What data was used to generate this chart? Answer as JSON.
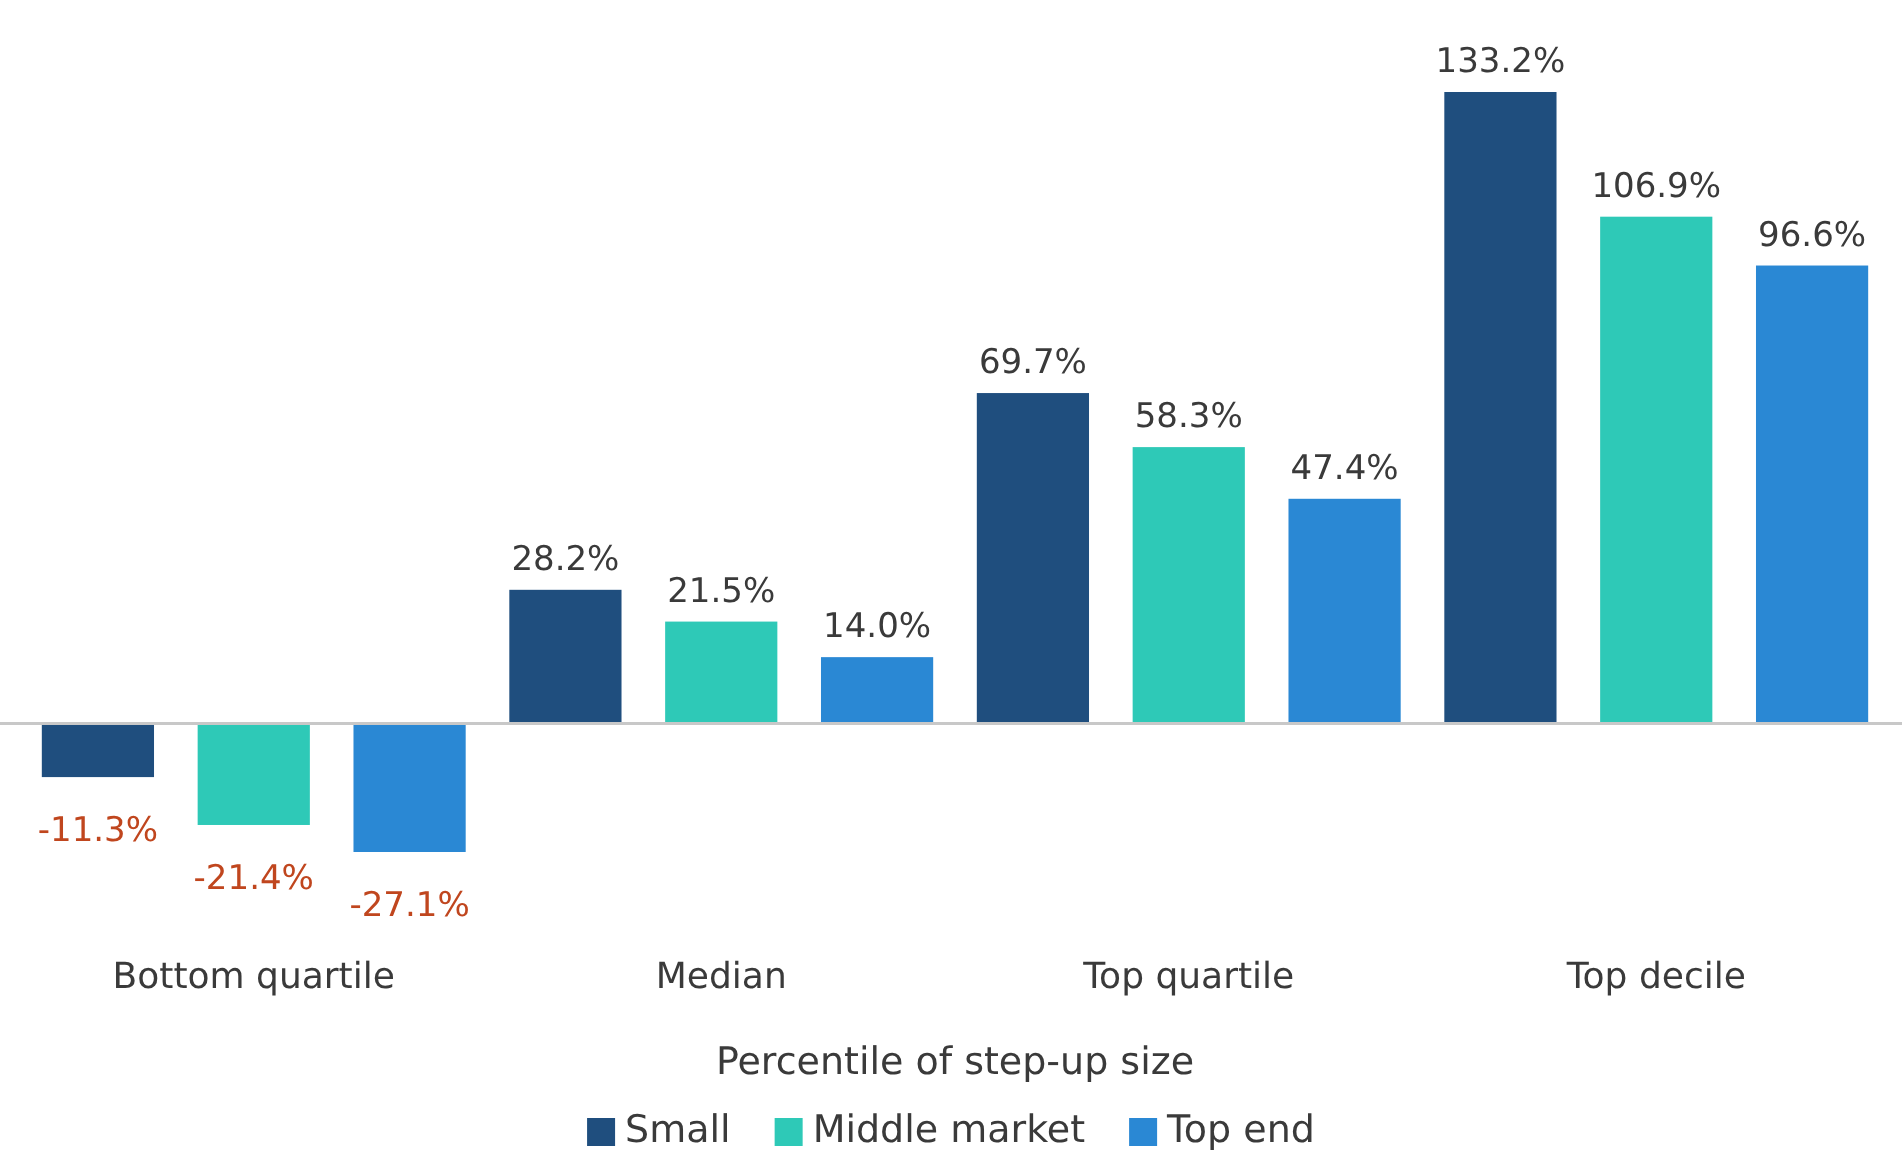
{
  "chart_data": {
    "type": "bar",
    "xlabel": "Percentile of step-up size",
    "categories": [
      "Bottom quartile",
      "Median",
      "Top quartile",
      "Top decile"
    ],
    "series": [
      {
        "name": "Small",
        "color": "#1f4e7e",
        "values": [
          -11.3,
          28.2,
          69.7,
          133.2
        ],
        "value_labels": [
          "-11.3%",
          "28.2%",
          "69.7%",
          "133.2%"
        ]
      },
      {
        "name": "Middle market",
        "color": "#2ec9b7",
        "values": [
          -21.4,
          21.5,
          58.3,
          106.9
        ],
        "value_labels": [
          "-21.4%",
          "21.5%",
          "58.3%",
          "106.9%"
        ]
      },
      {
        "name": "Top end",
        "color": "#2a88d4",
        "values": [
          -27.1,
          14.0,
          47.4,
          96.6
        ],
        "value_labels": [
          "-27.1%",
          "14.0%",
          "47.4%",
          "96.6%"
        ]
      }
    ],
    "legend": "bottom"
  }
}
